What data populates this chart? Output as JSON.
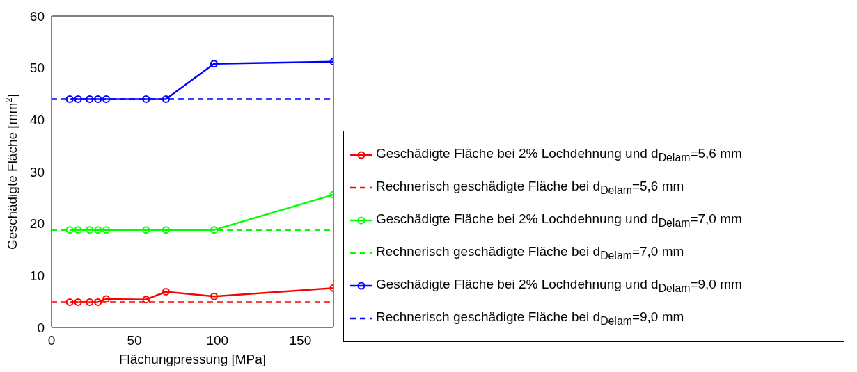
{
  "chart_data": {
    "type": "line",
    "xlabel": "Flächungpressung [MPa]",
    "ylabel": "Geschädigte Fläche [mm$^{2}$]",
    "xlim": [
      0,
      170
    ],
    "xticks": [
      0,
      50,
      100,
      150
    ],
    "ylim": [
      0,
      60
    ],
    "yticks": [
      0,
      10,
      20,
      30,
      40,
      50,
      60
    ],
    "legend": "right",
    "series": [
      {
        "name": "Geschädigte Fläche bei 2% Lochdehnung und d$_{Delam}$=5,6 mm",
        "color": "#ff0000",
        "marker": "circle",
        "line_style": "solid",
        "x": [
          11,
          16,
          23,
          28,
          33,
          57,
          69,
          98,
          170
        ],
        "values": [
          4.9,
          4.9,
          4.9,
          4.9,
          5.5,
          5.4,
          6.9,
          6.0,
          7.6
        ]
      },
      {
        "name": "Rechnerisch geschädigte Fläche bei d$_{Delam}$=5,6 mm",
        "color": "#ff0000",
        "marker": "none",
        "line_style": "dashed",
        "x": [
          0,
          170
        ],
        "values": [
          4.9,
          4.9
        ]
      },
      {
        "name": "Geschädigte Fläche bei 2% Lochdehnung und d$_{Delam}$=7,0 mm",
        "color": "#00ff00",
        "marker": "circle",
        "line_style": "solid",
        "x": [
          11,
          16,
          23,
          28,
          33,
          57,
          69,
          98,
          170
        ],
        "values": [
          18.8,
          18.8,
          18.8,
          18.8,
          18.8,
          18.8,
          18.8,
          18.8,
          25.6
        ]
      },
      {
        "name": "Rechnerisch geschädigte Fläche bei d$_{Delam}$=7,0 mm",
        "color": "#00ff00",
        "marker": "none",
        "line_style": "dashed",
        "x": [
          0,
          170
        ],
        "values": [
          18.8,
          18.8
        ]
      },
      {
        "name": "Geschädigte Fläche bei 2% Lochdehnung und d$_{Delam}$=9,0 mm",
        "color": "#0000ff",
        "marker": "circle",
        "line_style": "solid",
        "x": [
          11,
          16,
          23,
          28,
          33,
          57,
          69,
          98,
          170
        ],
        "values": [
          44.0,
          44.0,
          44.0,
          44.0,
          44.0,
          44.0,
          44.0,
          50.8,
          51.2
        ]
      },
      {
        "name": "Rechnerisch geschädigte Fläche bei d$_{Delam}$=9,0 mm",
        "color": "#0000ff",
        "marker": "none",
        "line_style": "dashed",
        "x": [
          0,
          170
        ],
        "values": [
          44.0,
          44.0
        ]
      }
    ]
  }
}
